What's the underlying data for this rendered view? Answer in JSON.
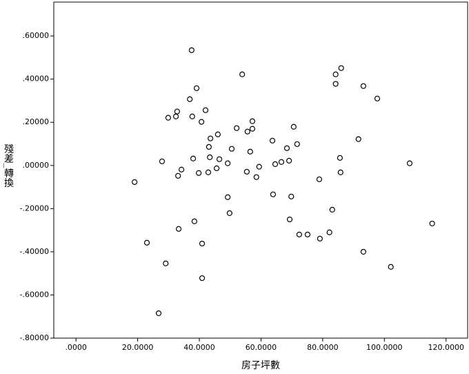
{
  "chart_data": {
    "type": "scatter",
    "x_label": "房子坪數",
    "y_label": "殘差_轉換",
    "marker_color": "#000000",
    "xlim": [
      -7.2,
      127
    ],
    "ylim": [
      -0.8,
      0.757
    ],
    "xticks": [
      {
        "value": 0,
        "label": ".0000"
      },
      {
        "value": 20,
        "label": "20.0000"
      },
      {
        "value": 40,
        "label": "40.0000"
      },
      {
        "value": 60,
        "label": "60.0000"
      },
      {
        "value": 80,
        "label": "80.0000"
      },
      {
        "value": 100,
        "label": "100.0000"
      },
      {
        "value": 120,
        "label": "120.0000"
      }
    ],
    "yticks": [
      {
        "value": -0.8,
        "label": "-.80000"
      },
      {
        "value": -0.6,
        "label": "-.60000"
      },
      {
        "value": -0.4,
        "label": "-.40000"
      },
      {
        "value": -0.2,
        "label": "-.20000"
      },
      {
        "value": 0,
        "label": ".00000"
      },
      {
        "value": 0.2,
        "label": ".20000"
      },
      {
        "value": 0.4,
        "label": ".40000"
      },
      {
        "value": 0.6,
        "label": ".60000"
      }
    ],
    "x": [
      19.0,
      23.0,
      29.1,
      26.8,
      27.9,
      29.9,
      32.8,
      32.4,
      33.1,
      34.2,
      33.3,
      37.5,
      36.9,
      37.7,
      38.0,
      38.4,
      39.1,
      39.8,
      40.7,
      40.9,
      40.9,
      42.0,
      42.9,
      43.1,
      43.4,
      43.6,
      45.6,
      46.0,
      46.5,
      49.2,
      49.2,
      49.8,
      50.5,
      52.1,
      53.9,
      55.4,
      55.6,
      56.5,
      57.2,
      57.2,
      58.5,
      59.4,
      63.7,
      63.9,
      64.6,
      66.6,
      68.4,
      69.1,
      69.3,
      69.8,
      70.6,
      71.7,
      72.4,
      75.1,
      78.9,
      79.1,
      82.2,
      83.1,
      84.2,
      84.2,
      86.0,
      85.6,
      85.8,
      91.6,
      93.2,
      93.2,
      97.7,
      102.1,
      108.2,
      115.5
    ],
    "y": [
      -0.077,
      -0.358,
      -0.454,
      -0.685,
      0.019,
      0.221,
      0.25,
      0.227,
      -0.048,
      -0.019,
      -0.294,
      0.534,
      0.307,
      0.227,
      0.032,
      -0.259,
      0.358,
      -0.035,
      0.202,
      -0.362,
      -0.522,
      0.256,
      -0.032,
      0.086,
      0.038,
      0.125,
      -0.013,
      0.144,
      0.029,
      -0.147,
      0.01,
      -0.221,
      0.077,
      0.173,
      0.422,
      -0.029,
      0.157,
      0.064,
      0.17,
      0.205,
      -0.054,
      -0.006,
      0.115,
      -0.134,
      0.006,
      0.016,
      0.08,
      0.022,
      -0.25,
      -0.144,
      0.179,
      0.099,
      -0.32,
      -0.32,
      -0.064,
      -0.339,
      -0.31,
      -0.205,
      0.378,
      0.422,
      0.451,
      0.035,
      -0.032,
      0.122,
      0.368,
      -0.4,
      0.31,
      -0.47,
      0.01,
      -0.269
    ]
  }
}
